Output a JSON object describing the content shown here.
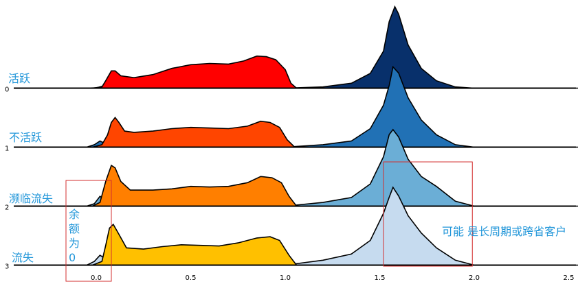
{
  "chart_data": {
    "type": "ridgeline",
    "title": "",
    "xlabel": "",
    "ylabel": "",
    "xlim": [
      -0.42,
      2.55
    ],
    "x_ticks": [
      0.0,
      0.5,
      1.0,
      1.5,
      2.0,
      2.5
    ],
    "x_tick_labels": [
      "0.0",
      "0.5",
      "1.0",
      "1.5",
      "2.0",
      "2.5"
    ],
    "rows": [
      {
        "id": "0",
        "label": "活跃",
        "red_color": "#ff0000",
        "blue_color": "#08306b",
        "red_density": [
          [
            -0.02,
            0
          ],
          [
            0.03,
            0.1
          ],
          [
            0.05,
            0.6
          ],
          [
            0.08,
            1.4
          ],
          [
            0.1,
            1.4
          ],
          [
            0.13,
            1.0
          ],
          [
            0.2,
            0.85
          ],
          [
            0.3,
            1.1
          ],
          [
            0.4,
            1.6
          ],
          [
            0.5,
            1.9
          ],
          [
            0.6,
            2.0
          ],
          [
            0.7,
            1.95
          ],
          [
            0.78,
            2.2
          ],
          [
            0.85,
            2.6
          ],
          [
            0.9,
            2.55
          ],
          [
            0.95,
            2.3
          ],
          [
            1.0,
            1.5
          ],
          [
            1.03,
            0.4
          ],
          [
            1.06,
            0
          ]
        ],
        "blue_density": [
          [
            -0.3,
            0
          ],
          [
            -0.05,
            0
          ],
          [
            0.0,
            0.02
          ],
          [
            0.03,
            0.15
          ],
          [
            0.06,
            0.02
          ],
          [
            0.1,
            0
          ],
          [
            1.0,
            0
          ],
          [
            1.2,
            0.1
          ],
          [
            1.35,
            0.4
          ],
          [
            1.45,
            1.2
          ],
          [
            1.52,
            3.0
          ],
          [
            1.55,
            5.4
          ],
          [
            1.58,
            6.6
          ],
          [
            1.6,
            6.0
          ],
          [
            1.65,
            3.5
          ],
          [
            1.72,
            1.6
          ],
          [
            1.8,
            0.6
          ],
          [
            1.9,
            0.1
          ],
          [
            2.0,
            0
          ],
          [
            2.55,
            0
          ]
        ]
      },
      {
        "id": "1",
        "label": "不活跃",
        "red_color": "#ff4500",
        "blue_color": "#2171b5",
        "red_density": [
          [
            -0.02,
            0
          ],
          [
            0.03,
            0.2
          ],
          [
            0.06,
            1.0
          ],
          [
            0.08,
            2.0
          ],
          [
            0.1,
            2.4
          ],
          [
            0.12,
            2.0
          ],
          [
            0.15,
            1.3
          ],
          [
            0.2,
            1.2
          ],
          [
            0.3,
            1.3
          ],
          [
            0.4,
            1.5
          ],
          [
            0.5,
            1.6
          ],
          [
            0.6,
            1.55
          ],
          [
            0.7,
            1.5
          ],
          [
            0.8,
            1.7
          ],
          [
            0.87,
            2.1
          ],
          [
            0.92,
            2.0
          ],
          [
            0.97,
            1.6
          ],
          [
            1.01,
            0.6
          ],
          [
            1.05,
            0
          ]
        ],
        "blue_density": [
          [
            -0.3,
            0
          ],
          [
            -0.05,
            0
          ],
          [
            -0.01,
            0.2
          ],
          [
            0.02,
            0.5
          ],
          [
            0.06,
            0.2
          ],
          [
            0.1,
            0
          ],
          [
            1.0,
            0
          ],
          [
            1.2,
            0.2
          ],
          [
            1.35,
            0.5
          ],
          [
            1.45,
            1.5
          ],
          [
            1.52,
            3.4
          ],
          [
            1.55,
            5.0
          ],
          [
            1.57,
            6.5
          ],
          [
            1.6,
            6.0
          ],
          [
            1.65,
            4.0
          ],
          [
            1.72,
            2.2
          ],
          [
            1.8,
            1.0
          ],
          [
            1.9,
            0.2
          ],
          [
            2.0,
            0
          ],
          [
            2.55,
            0
          ]
        ]
      },
      {
        "id": "2",
        "label": "濒临流失",
        "red_color": "#ff7f00",
        "blue_color": "#6baed6",
        "red_density": [
          [
            -0.02,
            0
          ],
          [
            0.02,
            0.3
          ],
          [
            0.05,
            2.0
          ],
          [
            0.08,
            3.3
          ],
          [
            0.1,
            3.1
          ],
          [
            0.13,
            2.0
          ],
          [
            0.18,
            1.3
          ],
          [
            0.3,
            1.3
          ],
          [
            0.4,
            1.4
          ],
          [
            0.5,
            1.6
          ],
          [
            0.6,
            1.55
          ],
          [
            0.7,
            1.6
          ],
          [
            0.8,
            1.9
          ],
          [
            0.87,
            2.4
          ],
          [
            0.93,
            2.3
          ],
          [
            0.98,
            1.9
          ],
          [
            1.02,
            0.8
          ],
          [
            1.06,
            0
          ]
        ],
        "blue_density": [
          [
            -0.3,
            0
          ],
          [
            -0.05,
            0
          ],
          [
            -0.01,
            0.2
          ],
          [
            0.02,
            0.8
          ],
          [
            0.06,
            0.3
          ],
          [
            0.1,
            0
          ],
          [
            1.0,
            0
          ],
          [
            1.2,
            0.3
          ],
          [
            1.35,
            0.7
          ],
          [
            1.45,
            1.8
          ],
          [
            1.52,
            4.0
          ],
          [
            1.55,
            5.8
          ],
          [
            1.57,
            6.2
          ],
          [
            1.6,
            5.6
          ],
          [
            1.65,
            3.8
          ],
          [
            1.72,
            2.4
          ],
          [
            1.8,
            1.6
          ],
          [
            1.9,
            0.4
          ],
          [
            2.0,
            0
          ],
          [
            2.55,
            0
          ]
        ]
      },
      {
        "id": "3",
        "label": "流失",
        "red_color": "#ffc000",
        "blue_color": "#c6dbef",
        "red_density": [
          [
            -0.02,
            0
          ],
          [
            0.03,
            0.3
          ],
          [
            0.05,
            1.6
          ],
          [
            0.07,
            3.0
          ],
          [
            0.09,
            3.3
          ],
          [
            0.12,
            2.5
          ],
          [
            0.16,
            1.4
          ],
          [
            0.25,
            1.3
          ],
          [
            0.35,
            1.5
          ],
          [
            0.45,
            1.65
          ],
          [
            0.55,
            1.6
          ],
          [
            0.65,
            1.55
          ],
          [
            0.75,
            1.8
          ],
          [
            0.85,
            2.2
          ],
          [
            0.92,
            2.3
          ],
          [
            0.97,
            2.0
          ],
          [
            1.02,
            0.8
          ],
          [
            1.06,
            0
          ]
        ],
        "blue_density": [
          [
            -0.3,
            0
          ],
          [
            -0.05,
            0
          ],
          [
            -0.01,
            0.3
          ],
          [
            0.02,
            0.8
          ],
          [
            0.06,
            0.4
          ],
          [
            0.1,
            0
          ],
          [
            1.0,
            0
          ],
          [
            1.2,
            0.4
          ],
          [
            1.35,
            0.9
          ],
          [
            1.45,
            2.0
          ],
          [
            1.52,
            4.2
          ],
          [
            1.55,
            5.5
          ],
          [
            1.57,
            6.3
          ],
          [
            1.6,
            5.6
          ],
          [
            1.65,
            4.0
          ],
          [
            1.72,
            2.6
          ],
          [
            1.8,
            1.4
          ],
          [
            1.9,
            0.4
          ],
          [
            2.0,
            0
          ],
          [
            2.55,
            0
          ]
        ]
      }
    ],
    "annotations": [
      {
        "text": "余额为0",
        "x_range": [
          -0.16,
          0.08
        ]
      },
      {
        "text": "可能 是长周期或跨省客户",
        "x_range": [
          1.52,
          1.99
        ]
      }
    ]
  }
}
